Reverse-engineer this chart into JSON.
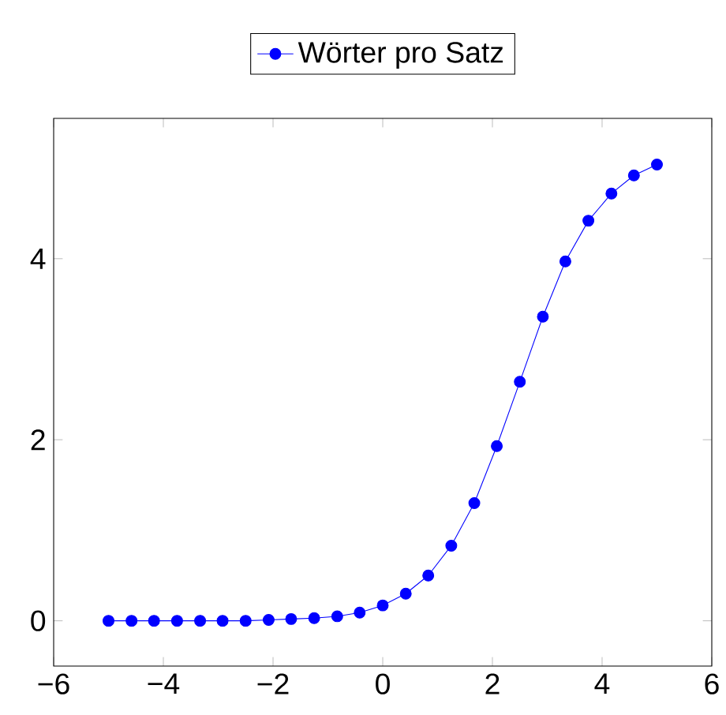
{
  "chart_data": {
    "type": "line",
    "x": [
      -5,
      -4.58,
      -4.17,
      -3.75,
      -3.33,
      -2.92,
      -2.5,
      -2.08,
      -1.67,
      -1.25,
      -0.83,
      -0.42,
      0,
      0.42,
      0.83,
      1.25,
      1.67,
      2.08,
      2.5,
      2.92,
      3.33,
      3.75,
      4.17,
      4.58,
      5
    ],
    "series": [
      {
        "name": "Wörter pro Satz",
        "color": "#0000ff",
        "values": [
          0,
          0,
          0,
          0,
          0,
          0,
          0,
          0.01,
          0.02,
          0.03,
          0.05,
          0.09,
          0.17,
          0.3,
          0.5,
          0.83,
          1.3,
          1.93,
          2.64,
          3.36,
          3.97,
          4.42,
          4.72,
          4.92,
          5.04
        ]
      }
    ],
    "xlim": [
      -6,
      6
    ],
    "ylim": [
      -0.5,
      5.55
    ],
    "xticks": [
      {
        "value": -6,
        "label": "−6"
      },
      {
        "value": -4,
        "label": "−4"
      },
      {
        "value": -2,
        "label": "−2"
      },
      0,
      2,
      4,
      6
    ],
    "yticks": [
      0,
      2,
      4
    ],
    "legend": "top",
    "marker": "circle",
    "line_style": "solid",
    "grid": false
  }
}
